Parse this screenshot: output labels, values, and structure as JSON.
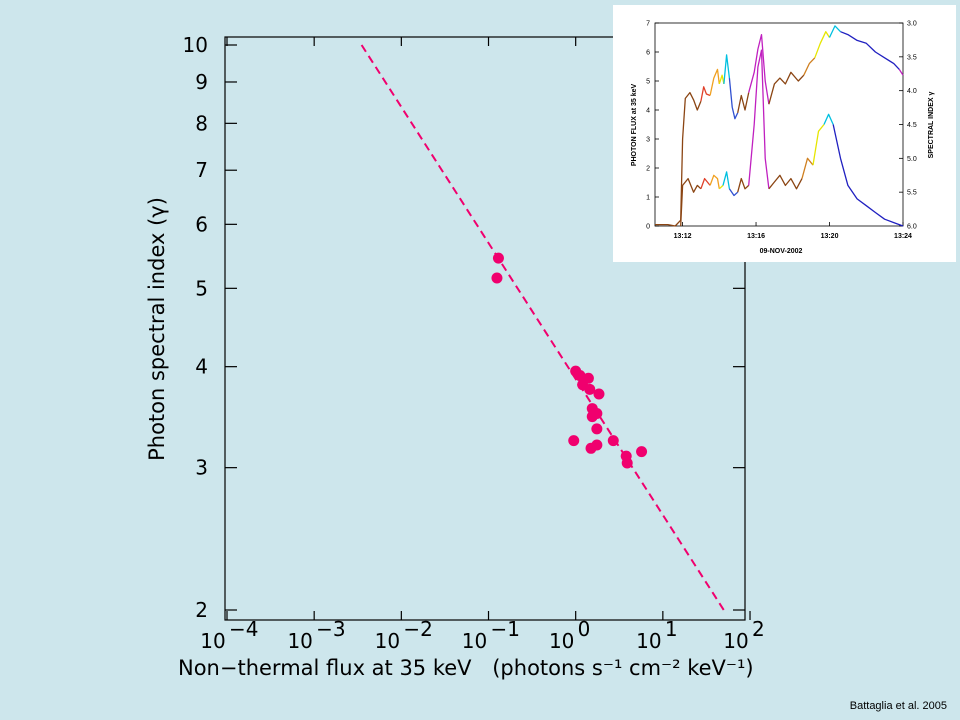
{
  "chart_data": [
    {
      "type": "scatter",
      "xlabel": "Non−thermal flux at 35 keV",
      "xlabel_units": "(photons s⁻¹ cm⁻² keV⁻¹)",
      "ylabel": "Photon spectral index (γ)",
      "x_scale": "log",
      "y_scale": "log",
      "xlim": [
        0.0001,
        100
      ],
      "ylim": [
        2,
        10
      ],
      "x_ticks": [
        {
          "value": 0.0001,
          "base": "10",
          "exp": "−4"
        },
        {
          "value": 0.001,
          "base": "10",
          "exp": "−3"
        },
        {
          "value": 0.01,
          "base": "10",
          "exp": "−2"
        },
        {
          "value": 0.1,
          "base": "10",
          "exp": "−1"
        },
        {
          "value": 1,
          "base": "10",
          "exp": "0"
        },
        {
          "value": 10,
          "base": "10",
          "exp": "1"
        },
        {
          "value": 100,
          "base": "10",
          "exp": "2"
        }
      ],
      "y_ticks": [
        2,
        3,
        4,
        5,
        6,
        7,
        8,
        9,
        10
      ],
      "grid": false,
      "color": "#f0006e",
      "series": [
        {
          "style": "points",
          "points": [
            {
              "x": 0.13,
              "y": 5.45
            },
            {
              "x": 0.125,
              "y": 5.15
            },
            {
              "x": 1.0,
              "y": 3.95
            },
            {
              "x": 1.12,
              "y": 3.9
            },
            {
              "x": 1.4,
              "y": 3.87
            },
            {
              "x": 1.2,
              "y": 3.8
            },
            {
              "x": 1.45,
              "y": 3.75
            },
            {
              "x": 1.85,
              "y": 3.7
            },
            {
              "x": 1.55,
              "y": 3.55
            },
            {
              "x": 1.75,
              "y": 3.5
            },
            {
              "x": 1.55,
              "y": 3.47
            },
            {
              "x": 1.75,
              "y": 3.35
            },
            {
              "x": 0.95,
              "y": 3.24
            },
            {
              "x": 2.7,
              "y": 3.24
            },
            {
              "x": 1.75,
              "y": 3.2
            },
            {
              "x": 1.5,
              "y": 3.17
            },
            {
              "x": 5.7,
              "y": 3.14
            },
            {
              "x": 3.8,
              "y": 3.1
            },
            {
              "x": 3.9,
              "y": 3.04
            }
          ]
        },
        {
          "style": "dashed-line",
          "points": [
            {
              "x": 0.0035,
              "y": 10
            },
            {
              "x": 50,
              "y": 2
            }
          ]
        }
      ]
    },
    {
      "type": "line",
      "panel": "inset",
      "xlabel": "09-NOV-2002",
      "ylabel_left": "PHOTON FLUX at 35 keV",
      "ylabel_right": "SPECTRAL INDEX γ",
      "x_ticks": [
        "13:12",
        "13:16",
        "13:20",
        "13:24"
      ],
      "y_left_ticks": [
        "0",
        "1",
        "2",
        "3",
        "4",
        "5",
        "6",
        "7"
      ],
      "y_right_ticks": [
        "3.0",
        "3.5",
        "4.0",
        "4.5",
        "5.0",
        "5.5",
        "6.0"
      ],
      "xlim": [
        10.5,
        24
      ],
      "ylim_left": [
        0,
        7
      ],
      "ylim_right": [
        3.0,
        6.0
      ],
      "series": [
        {
          "name": "photon-flux",
          "axis": "left",
          "segments": [
            {
              "color": "#8b4513",
              "points": [
                [
                  10.5,
                  0.05
                ],
                [
                  11.2,
                  0.05
                ],
                [
                  11.6,
                  0.0
                ],
                [
                  11.9,
                  0.2
                ],
                [
                  12.0,
                  3.0
                ],
                [
                  12.15,
                  4.4
                ],
                [
                  12.4,
                  4.6
                ],
                [
                  12.6,
                  4.35
                ],
                [
                  12.8,
                  4.0
                ],
                [
                  13.0,
                  4.3
                ]
              ]
            },
            {
              "color": "#e0402a",
              "points": [
                [
                  13.0,
                  4.3
                ],
                [
                  13.15,
                  4.8
                ],
                [
                  13.3,
                  4.55
                ],
                [
                  13.5,
                  4.5
                ]
              ]
            },
            {
              "color": "#f0a020",
              "points": [
                [
                  13.5,
                  4.5
                ],
                [
                  13.7,
                  5.1
                ],
                [
                  13.9,
                  5.4
                ],
                [
                  14.0,
                  4.9
                ]
              ]
            },
            {
              "color": "#e6e600",
              "points": [
                [
                  14.0,
                  4.9
                ],
                [
                  14.15,
                  5.2
                ],
                [
                  14.25,
                  4.9
                ]
              ]
            },
            {
              "color": "#00c0e0",
              "points": [
                [
                  14.25,
                  4.9
                ],
                [
                  14.4,
                  5.9
                ],
                [
                  14.55,
                  5.1
                ]
              ]
            },
            {
              "color": "#3050d0",
              "points": [
                [
                  14.55,
                  5.1
                ],
                [
                  14.7,
                  4.1
                ],
                [
                  14.85,
                  3.7
                ],
                [
                  15.0,
                  3.9
                ]
              ]
            },
            {
              "color": "#8b4513",
              "points": [
                [
                  15.0,
                  3.9
                ],
                [
                  15.2,
                  4.5
                ],
                [
                  15.4,
                  4.0
                ],
                [
                  15.6,
                  4.6
                ]
              ]
            },
            {
              "color": "#c020c0",
              "points": [
                [
                  15.6,
                  4.6
                ],
                [
                  15.9,
                  5.3
                ],
                [
                  16.1,
                  6.1
                ],
                [
                  16.3,
                  6.6
                ],
                [
                  16.5,
                  5.0
                ],
                [
                  16.7,
                  4.2
                ]
              ]
            },
            {
              "color": "#8b4513",
              "points": [
                [
                  16.7,
                  4.2
                ],
                [
                  17.0,
                  4.9
                ],
                [
                  17.3,
                  5.1
                ],
                [
                  17.6,
                  4.9
                ],
                [
                  17.9,
                  5.3
                ],
                [
                  18.3,
                  5.0
                ],
                [
                  18.6,
                  5.2
                ]
              ]
            },
            {
              "color": "#d08020",
              "points": [
                [
                  18.6,
                  5.2
                ],
                [
                  18.9,
                  5.6
                ],
                [
                  19.2,
                  5.8
                ]
              ]
            },
            {
              "color": "#e6e600",
              "points": [
                [
                  19.2,
                  5.8
                ],
                [
                  19.5,
                  6.3
                ],
                [
                  19.8,
                  6.7
                ],
                [
                  20.0,
                  6.5
                ]
              ]
            },
            {
              "color": "#00c0e0",
              "points": [
                [
                  20.0,
                  6.5
                ],
                [
                  20.3,
                  6.9
                ],
                [
                  20.6,
                  6.7
                ]
              ]
            },
            {
              "color": "#2020c0",
              "points": [
                [
                  20.6,
                  6.7
                ],
                [
                  21.0,
                  6.6
                ],
                [
                  21.5,
                  6.4
                ],
                [
                  22.0,
                  6.3
                ],
                [
                  22.5,
                  6.0
                ],
                [
                  23.0,
                  5.8
                ],
                [
                  23.5,
                  5.6
                ],
                [
                  23.8,
                  5.4
                ]
              ]
            },
            {
              "color": "#c020c0",
              "points": [
                [
                  23.8,
                  5.4
                ],
                [
                  24.0,
                  5.2
                ]
              ]
            }
          ]
        },
        {
          "name": "spectral-index",
          "axis": "right",
          "segments": [
            {
              "color": "#8b4513",
              "points": [
                [
                  11.9,
                  6.0
                ],
                [
                  12.0,
                  5.4
                ],
                [
                  12.3,
                  5.3
                ],
                [
                  12.6,
                  5.5
                ],
                [
                  12.8,
                  5.4
                ],
                [
                  13.0,
                  5.45
                ]
              ]
            },
            {
              "color": "#e0402a",
              "points": [
                [
                  13.0,
                  5.45
                ],
                [
                  13.2,
                  5.3
                ],
                [
                  13.5,
                  5.4
                ]
              ]
            },
            {
              "color": "#f0a020",
              "points": [
                [
                  13.5,
                  5.4
                ],
                [
                  13.7,
                  5.25
                ],
                [
                  13.9,
                  5.3
                ],
                [
                  14.0,
                  5.45
                ]
              ]
            },
            {
              "color": "#e6e600",
              "points": [
                [
                  14.0,
                  5.45
                ],
                [
                  14.2,
                  5.4
                ]
              ]
            },
            {
              "color": "#00c0e0",
              "points": [
                [
                  14.2,
                  5.4
                ],
                [
                  14.4,
                  5.2
                ],
                [
                  14.55,
                  5.45
                ]
              ]
            },
            {
              "color": "#3050d0",
              "points": [
                [
                  14.55,
                  5.45
                ],
                [
                  14.8,
                  5.55
                ],
                [
                  15.0,
                  5.5
                ]
              ]
            },
            {
              "color": "#8b4513",
              "points": [
                [
                  15.0,
                  5.5
                ],
                [
                  15.2,
                  5.3
                ],
                [
                  15.4,
                  5.45
                ],
                [
                  15.6,
                  5.4
                ]
              ]
            },
            {
              "color": "#c020c0",
              "points": [
                [
                  15.6,
                  5.4
                ],
                [
                  15.9,
                  4.5
                ],
                [
                  16.1,
                  3.65
                ],
                [
                  16.3,
                  3.4
                ],
                [
                  16.5,
                  5.0
                ],
                [
                  16.7,
                  5.45
                ]
              ]
            },
            {
              "color": "#8b4513",
              "points": [
                [
                  16.7,
                  5.45
                ],
                [
                  17.0,
                  5.35
                ],
                [
                  17.3,
                  5.25
                ],
                [
                  17.6,
                  5.4
                ],
                [
                  17.9,
                  5.3
                ],
                [
                  18.2,
                  5.45
                ],
                [
                  18.5,
                  5.3
                ]
              ]
            },
            {
              "color": "#d08020",
              "points": [
                [
                  18.5,
                  5.3
                ],
                [
                  18.8,
                  5.0
                ],
                [
                  19.1,
                  5.1
                ]
              ]
            },
            {
              "color": "#e6e600",
              "points": [
                [
                  19.1,
                  5.1
                ],
                [
                  19.4,
                  4.6
                ],
                [
                  19.7,
                  4.5
                ]
              ]
            },
            {
              "color": "#00c0e0",
              "points": [
                [
                  19.7,
                  4.5
                ],
                [
                  19.95,
                  4.35
                ],
                [
                  20.2,
                  4.5
                ]
              ]
            },
            {
              "color": "#2020c0",
              "points": [
                [
                  20.2,
                  4.5
                ],
                [
                  20.6,
                  5.0
                ],
                [
                  21.0,
                  5.4
                ],
                [
                  21.5,
                  5.6
                ],
                [
                  22.0,
                  5.7
                ],
                [
                  22.5,
                  5.8
                ],
                [
                  23.0,
                  5.9
                ],
                [
                  23.5,
                  5.95
                ],
                [
                  24.0,
                  6.0
                ]
              ]
            }
          ]
        }
      ]
    }
  ],
  "citation": "Battaglia et al. 2005"
}
